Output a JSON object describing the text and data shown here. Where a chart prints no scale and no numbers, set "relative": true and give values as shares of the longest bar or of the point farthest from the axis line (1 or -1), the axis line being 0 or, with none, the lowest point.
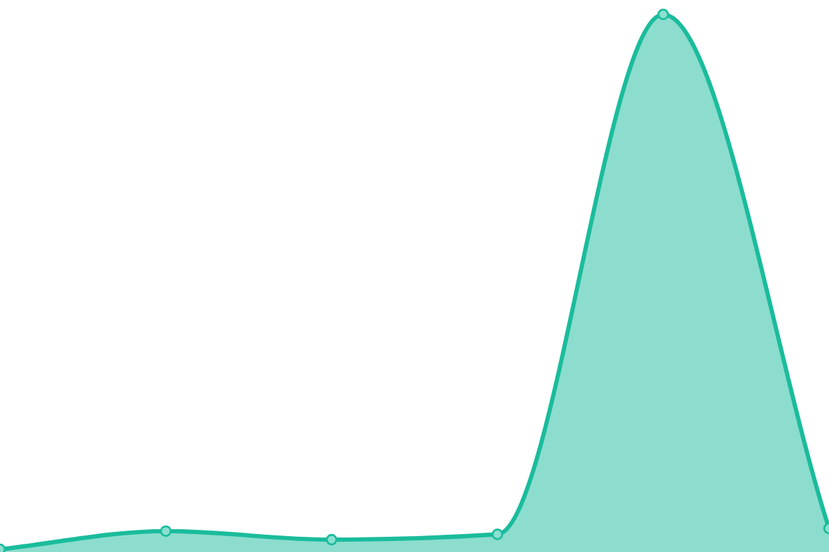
{
  "chart_data": {
    "type": "area",
    "relative": true,
    "categories": [
      null,
      null,
      null,
      null,
      null,
      null
    ],
    "series": [
      {
        "color": "#1abc9c",
        "values": [
          0,
          0.034,
          0.018,
          0.028,
          1,
          0.039
        ]
      }
    ],
    "marker": "circle",
    "line_style": "solid",
    "legend": false
  }
}
